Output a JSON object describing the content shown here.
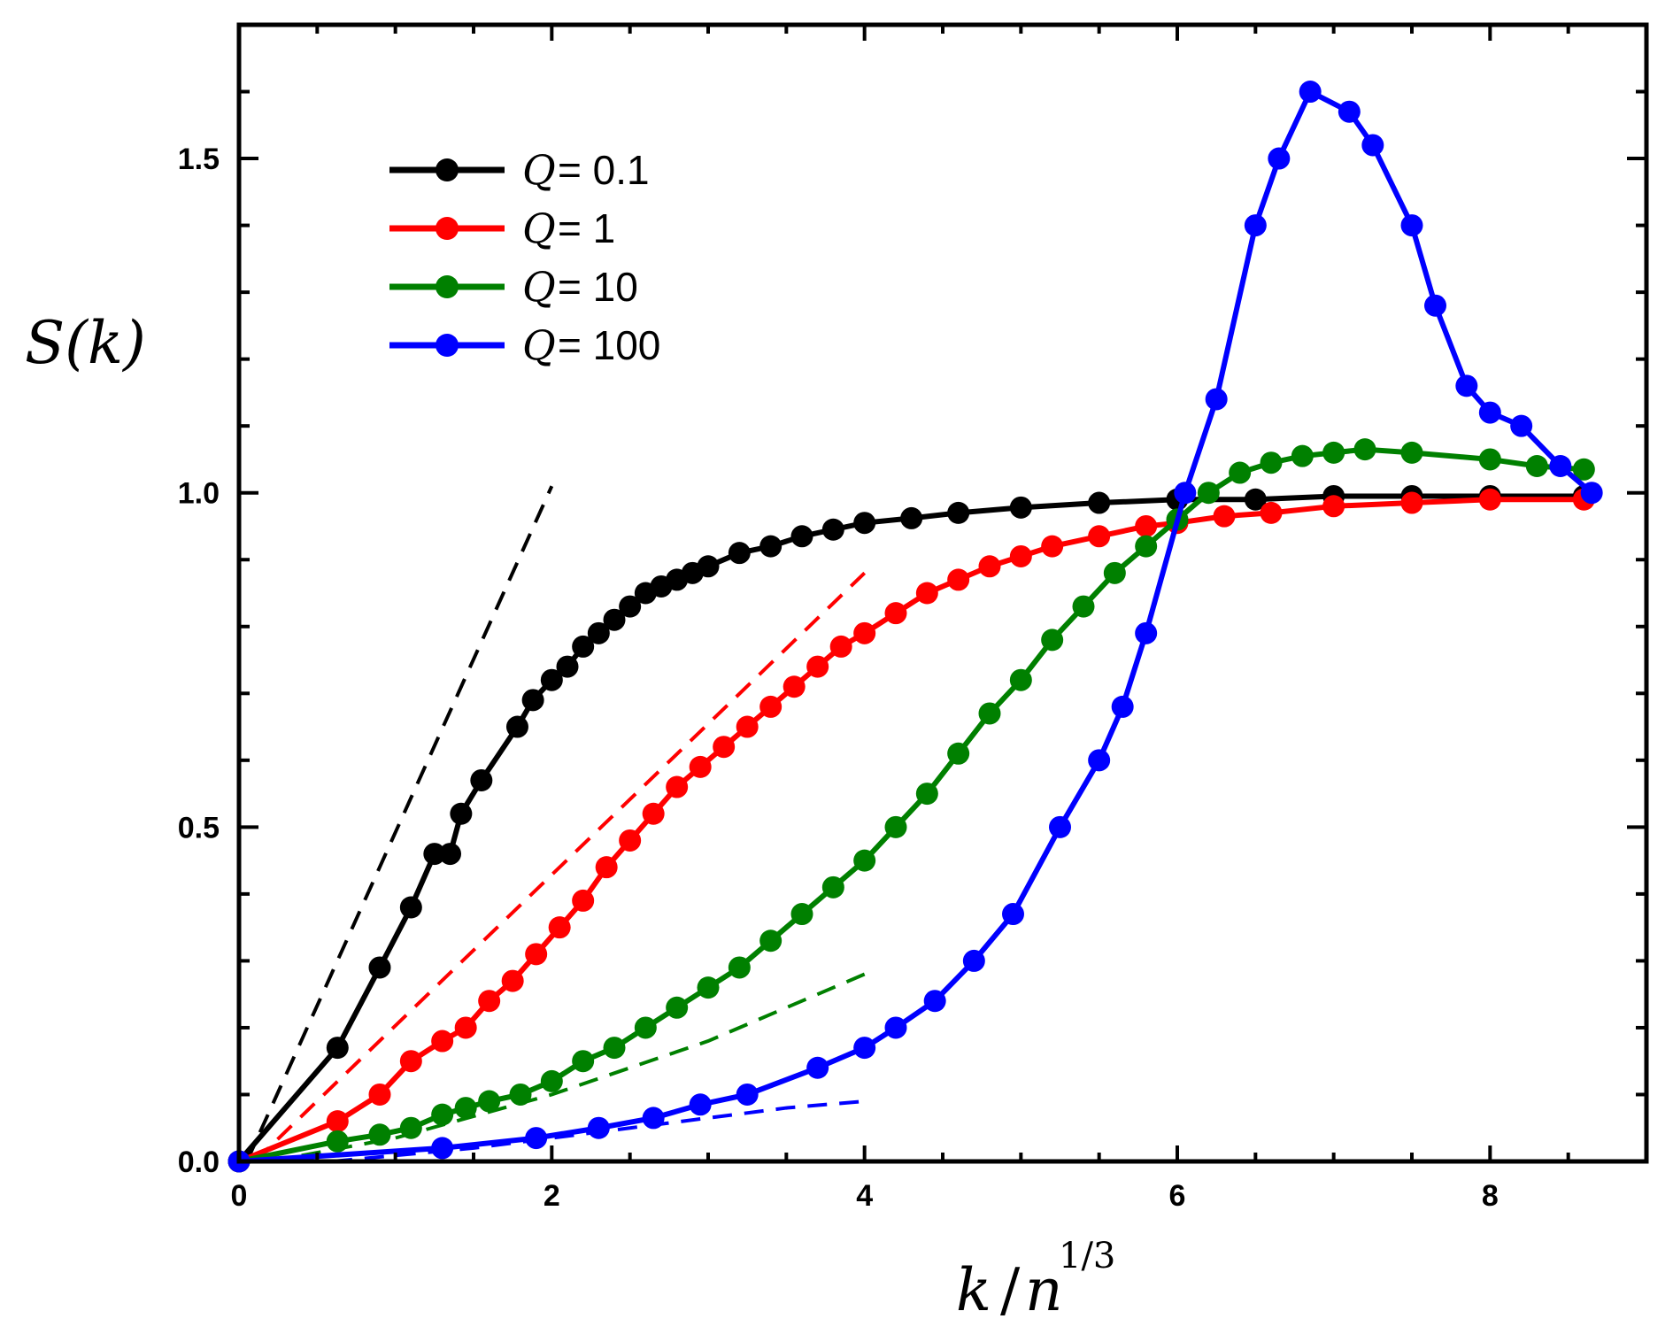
{
  "chart_data": {
    "type": "line",
    "title": "",
    "xlabel": "k / n^1/3",
    "xlabel_parts": {
      "var": "k",
      "slash": "/",
      "n": "n",
      "exp": "1/3"
    },
    "ylabel": "S(k)",
    "xlim": [
      0,
      9
    ],
    "ylim": [
      0,
      1.7
    ],
    "x_ticks": [
      0,
      2,
      4,
      6,
      8
    ],
    "x_tick_labels": [
      "0",
      "2",
      "4",
      "6",
      "8"
    ],
    "y_ticks": [
      0.0,
      0.5,
      1.0,
      1.5
    ],
    "y_tick_labels": [
      "0.0",
      "0.5",
      "1.0",
      "1.5"
    ],
    "grid": false,
    "legend_position": "top-left",
    "colors": {
      "q01": "#000000",
      "q1": "#ff0000",
      "q10": "#008000",
      "q100": "#0000ff"
    },
    "series": [
      {
        "name": "Q = 0.1",
        "q_label": "Q",
        "value_label": "= 0.1",
        "color": "#000000",
        "x": [
          0.0,
          0.63,
          0.9,
          1.1,
          1.25,
          1.35,
          1.42,
          1.55,
          1.78,
          1.88,
          2.0,
          2.1,
          2.2,
          2.3,
          2.4,
          2.5,
          2.6,
          2.7,
          2.8,
          2.9,
          3.0,
          3.2,
          3.4,
          3.6,
          3.8,
          4.0,
          4.3,
          4.6,
          5.0,
          5.5,
          6.0,
          6.5,
          7.0,
          7.5,
          8.0,
          8.6
        ],
        "y": [
          0.0,
          0.17,
          0.29,
          0.38,
          0.46,
          0.46,
          0.52,
          0.57,
          0.65,
          0.69,
          0.72,
          0.74,
          0.77,
          0.79,
          0.81,
          0.83,
          0.85,
          0.86,
          0.87,
          0.88,
          0.89,
          0.91,
          0.92,
          0.935,
          0.945,
          0.955,
          0.962,
          0.97,
          0.978,
          0.985,
          0.99,
          0.99,
          0.995,
          0.995,
          0.995,
          0.995
        ]
      },
      {
        "name": "Q = 1",
        "q_label": "Q",
        "value_label": "= 1",
        "color": "#ff0000",
        "x": [
          0.0,
          0.63,
          0.9,
          1.1,
          1.3,
          1.45,
          1.6,
          1.75,
          1.9,
          2.05,
          2.2,
          2.35,
          2.5,
          2.65,
          2.8,
          2.95,
          3.1,
          3.25,
          3.4,
          3.55,
          3.7,
          3.85,
          4.0,
          4.2,
          4.4,
          4.6,
          4.8,
          5.0,
          5.2,
          5.5,
          5.8,
          6.0,
          6.3,
          6.6,
          7.0,
          7.5,
          8.0,
          8.6
        ],
        "y": [
          0.0,
          0.06,
          0.1,
          0.15,
          0.18,
          0.2,
          0.24,
          0.27,
          0.31,
          0.35,
          0.39,
          0.44,
          0.48,
          0.52,
          0.56,
          0.59,
          0.62,
          0.65,
          0.68,
          0.71,
          0.74,
          0.77,
          0.79,
          0.82,
          0.85,
          0.87,
          0.89,
          0.905,
          0.92,
          0.935,
          0.95,
          0.955,
          0.965,
          0.97,
          0.98,
          0.985,
          0.99,
          0.99
        ]
      },
      {
        "name": "Q = 10",
        "q_label": "Q",
        "value_label": "= 10",
        "color": "#008000",
        "x": [
          0.0,
          0.63,
          0.9,
          1.1,
          1.3,
          1.45,
          1.6,
          1.8,
          2.0,
          2.2,
          2.4,
          2.6,
          2.8,
          3.0,
          3.2,
          3.4,
          3.6,
          3.8,
          4.0,
          4.2,
          4.4,
          4.6,
          4.8,
          5.0,
          5.2,
          5.4,
          5.6,
          5.8,
          6.0,
          6.2,
          6.4,
          6.6,
          6.8,
          7.0,
          7.2,
          7.5,
          8.0,
          8.3,
          8.6
        ],
        "y": [
          0.0,
          0.03,
          0.04,
          0.05,
          0.07,
          0.08,
          0.09,
          0.1,
          0.12,
          0.15,
          0.17,
          0.2,
          0.23,
          0.26,
          0.29,
          0.33,
          0.37,
          0.41,
          0.45,
          0.5,
          0.55,
          0.61,
          0.67,
          0.72,
          0.78,
          0.83,
          0.88,
          0.92,
          0.96,
          1.0,
          1.03,
          1.045,
          1.055,
          1.06,
          1.065,
          1.06,
          1.05,
          1.04,
          1.035
        ]
      },
      {
        "name": "Q = 100",
        "q_label": "Q",
        "value_label": "= 100",
        "color": "#0000ff",
        "x": [
          0.0,
          1.3,
          1.9,
          2.3,
          2.65,
          2.95,
          3.25,
          3.7,
          4.0,
          4.2,
          4.45,
          4.7,
          4.95,
          5.25,
          5.5,
          5.65,
          5.8,
          6.05,
          6.25,
          6.5,
          6.65,
          6.85,
          7.1,
          7.25,
          7.5,
          7.65,
          7.85,
          8.0,
          8.2,
          8.45,
          8.65
        ],
        "y": [
          0.0,
          0.02,
          0.035,
          0.05,
          0.065,
          0.085,
          0.1,
          0.14,
          0.17,
          0.2,
          0.24,
          0.3,
          0.37,
          0.5,
          0.6,
          0.68,
          0.79,
          1.0,
          1.14,
          1.4,
          1.5,
          1.6,
          1.57,
          1.52,
          1.4,
          1.28,
          1.16,
          1.12,
          1.1,
          1.04,
          1.0
        ]
      }
    ],
    "fit_lines": [
      {
        "name": "fit-q01",
        "color": "#000000",
        "x": [
          0.05,
          2.0
        ],
        "y": [
          0.0,
          1.01
        ]
      },
      {
        "name": "fit-q1",
        "color": "#ff0000",
        "x": [
          0.1,
          4.0
        ],
        "y": [
          0.0,
          0.88
        ]
      },
      {
        "name": "fit-q10",
        "color": "#008000",
        "x": [
          0.2,
          1.0,
          2.0,
          3.0,
          4.0
        ],
        "y": [
          0.0,
          0.035,
          0.1,
          0.18,
          0.28
        ]
      },
      {
        "name": "fit-q100",
        "color": "#0000ff",
        "x": [
          0.6,
          1.5,
          2.5,
          3.5,
          4.0
        ],
        "y": [
          0.0,
          0.02,
          0.05,
          0.08,
          0.09
        ]
      }
    ]
  }
}
